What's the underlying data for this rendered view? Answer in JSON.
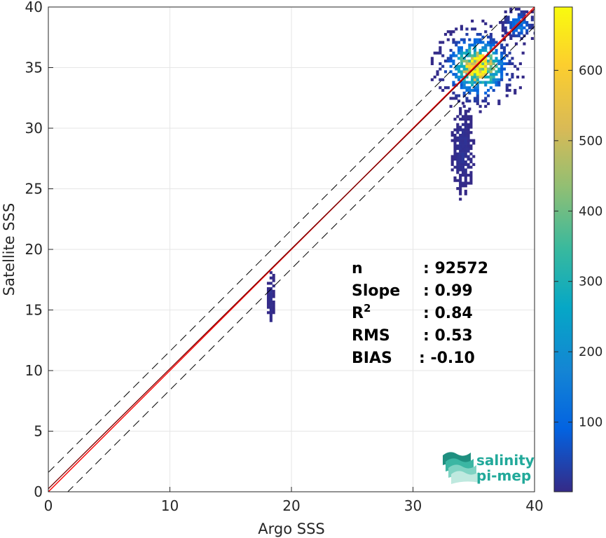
{
  "chart_data": {
    "type": "heatmap",
    "title": "",
    "xlabel": "Argo SSS",
    "ylabel": "Satellite SSS",
    "xlim": [
      0,
      40
    ],
    "ylim": [
      0,
      40
    ],
    "x_ticks": [
      "0",
      "10",
      "20",
      "30",
      "40"
    ],
    "y_ticks": [
      "0",
      "5",
      "10",
      "15",
      "20",
      "25",
      "30",
      "35",
      "40"
    ],
    "grid": true,
    "colorbar": {
      "colormap": "parula",
      "range": [
        1,
        690
      ],
      "ticks": [
        "100",
        "200",
        "300",
        "400",
        "500",
        "600"
      ],
      "tick_values": [
        100,
        200,
        300,
        400,
        500,
        600
      ]
    },
    "reference_lines": [
      {
        "name": "1:1 line",
        "slope": 1,
        "intercept": 0,
        "color": "#ff0000",
        "style": "solid"
      },
      {
        "name": "regression",
        "slope": 0.99,
        "intercept": 0.25,
        "color": "#7a0000",
        "style": "solid"
      },
      {
        "name": "upper bound",
        "slope": 1,
        "intercept": 1.6,
        "color": "#000000",
        "style": "dashed"
      },
      {
        "name": "lower bound",
        "slope": 1,
        "intercept": -1.6,
        "color": "#000000",
        "style": "dashed"
      }
    ],
    "density_clusters": [
      {
        "x_center": 35.2,
        "y_center": 35.0,
        "x_spread": 1.6,
        "y_spread": 1.6,
        "peak_count": 690
      },
      {
        "x_center": 38.6,
        "y_center": 38.4,
        "x_spread": 0.8,
        "y_spread": 0.8,
        "peak_count": 150
      },
      {
        "x_center": 34.0,
        "y_center": 28.0,
        "x_spread": 0.6,
        "y_spread": 2.5,
        "peak_count": 15
      },
      {
        "x_center": 18.2,
        "y_center": 16.0,
        "x_spread": 0.2,
        "y_spread": 2.0,
        "peak_count": 10
      }
    ],
    "stats": [
      {
        "label": "n",
        "sup": "",
        "value": ": 92572"
      },
      {
        "label": "Slope",
        "sup": "",
        "value": ": 0.99"
      },
      {
        "label": "R",
        "sup": "2",
        "value": ": 0.84"
      },
      {
        "label": "RMS",
        "sup": "",
        "value": ": 0.53"
      },
      {
        "label": "BIAS",
        "sup": "",
        "value": ": -0.10"
      }
    ]
  },
  "logo": {
    "line1": "salinity",
    "line2": "pi-mep",
    "colors": [
      "#1f8f80",
      "#3bb6a3",
      "#7fd3c3",
      "#bfe9df"
    ]
  }
}
